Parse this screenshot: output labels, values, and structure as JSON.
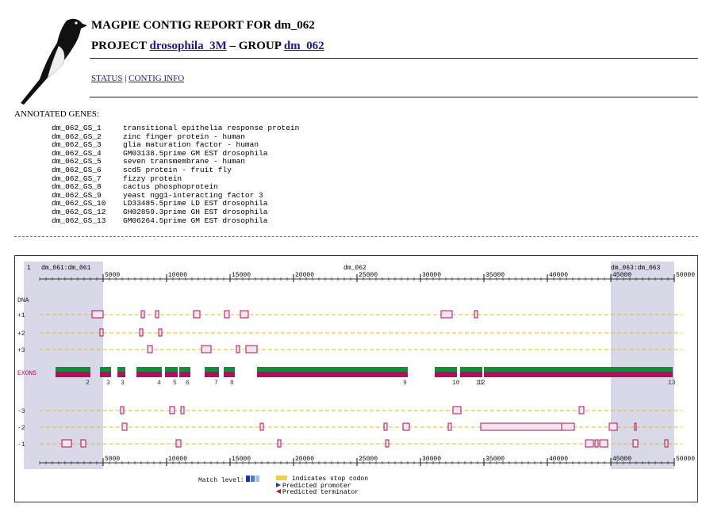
{
  "header": {
    "title": "MAGPIE CONTIG REPORT FOR dm_062",
    "project_prefix": "PROJECT",
    "project_link": "drosophila_3M",
    "group_prefix": "– GROUP",
    "group_link": "dm_062"
  },
  "nav": {
    "status": "STATUS",
    "separator": "|",
    "contig_info": "CONTIG INFO"
  },
  "genes": {
    "heading": "ANNOTATED GENES:",
    "rows": [
      [
        "dm_062_GS_1",
        "transitional epithelia response protein"
      ],
      [
        "dm_062_GS_2",
        "zinc finger protein - human"
      ],
      [
        "dm_062_GS_3",
        "glia maturation factor - human"
      ],
      [
        "dm_062_GS_4",
        "GM03138.5prime GM EST drosophila"
      ],
      [
        "dm_062_GS_5",
        "seven transmembrane - human"
      ],
      [
        "dm_062_GS_6",
        "scd5 protein - fruit fly"
      ],
      [
        "dm_062_GS_7",
        "fizzy protein"
      ],
      [
        "dm_062_GS_8",
        "cactus phosphoprotein"
      ],
      [
        "dm_062_GS_9",
        "yeast ngg1-interacting factor 3"
      ],
      [
        "dm_062_GS_10",
        "LD33485.5prime LD EST drosophila"
      ],
      [
        "dm_062_GS_12",
        "GH02859.3prime GH EST drosophila"
      ],
      [
        "dm_062_GS_13",
        "GM06264.5prime GM EST drosophila"
      ]
    ]
  },
  "viewer": {
    "start_label": "1",
    "left_contig": "dm_061:dm_061",
    "center_contig": "dm_062",
    "right_contig": "dm_063:dm_063",
    "ruler": [
      5000,
      10000,
      15000,
      20000,
      25000,
      30000,
      35000,
      40000,
      45000,
      50000
    ],
    "tracks": [
      "DNA",
      "+1",
      "+2",
      "+3",
      "EXONS",
      "-3",
      "-2",
      "-1"
    ],
    "exon_labels": [
      "2",
      "3",
      "3",
      "4",
      "5",
      "6",
      "7",
      "8",
      "9",
      "10",
      "11",
      "12",
      "13"
    ],
    "legend": {
      "match_level": "Match level:",
      "stop_codon": "indicates stop codon",
      "promoter": "Predicted promoter",
      "terminator": "Predicted terminator"
    }
  }
}
